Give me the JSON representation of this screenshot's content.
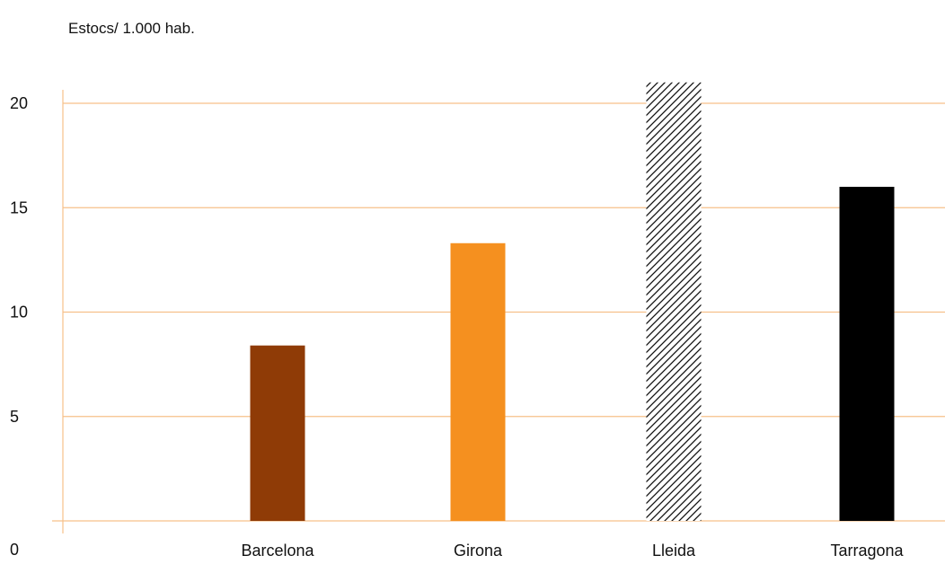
{
  "chart_data": {
    "type": "bar",
    "title": "",
    "xlabel": "",
    "ylabel": "Estocs/ 1.000 hab.",
    "categories": [
      "Barcelona",
      "Girona",
      "Lleida",
      "Tarragona"
    ],
    "values": [
      8.4,
      13.3,
      21.0,
      16.0
    ],
    "ylim": [
      0,
      20
    ],
    "yticks": [
      0,
      5,
      10,
      15,
      20
    ],
    "ytick_labels": [
      "0",
      "5",
      "10",
      "15",
      "20"
    ],
    "grid": true,
    "legend": "none",
    "colors": {
      "Barcelona": "#8f3b06",
      "Girona": "#f5901f",
      "Lleida": "hatched-black-white",
      "Tarragona": "#000000"
    },
    "grid_color": "#f6c08a"
  }
}
